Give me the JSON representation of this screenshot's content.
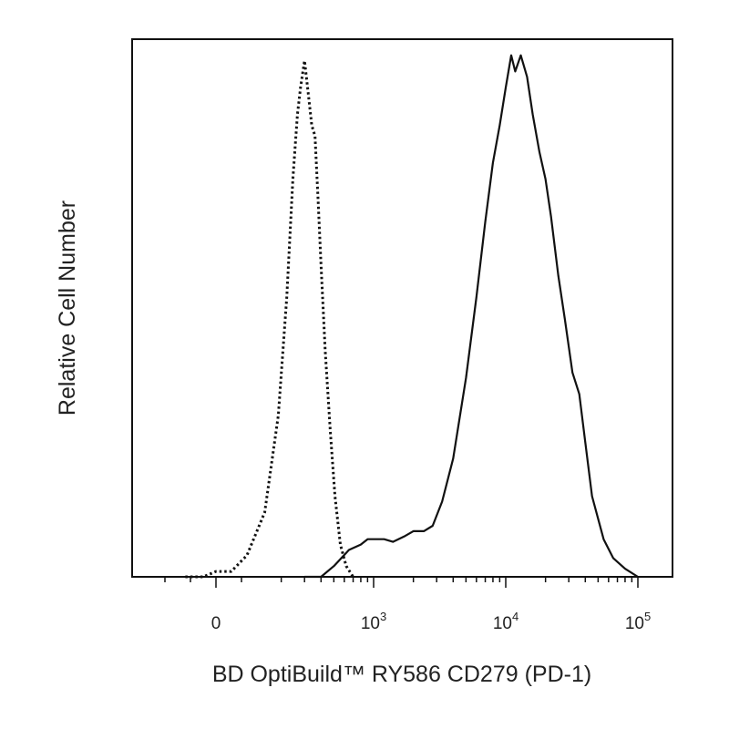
{
  "chart_data": {
    "type": "area",
    "xlabel": "BD OptiBuild™ RY586 CD279 (PD-1)",
    "ylabel": "Relative Cell Number",
    "x_scale": "biexponential (log above ~10^2.3)",
    "xlim": [
      -300,
      130000
    ],
    "ylim": [
      0,
      1.0
    ],
    "grid": false,
    "legend": "none",
    "x_tick_labels": [
      {
        "base": "0",
        "exp": "",
        "value": 0
      },
      {
        "base": "10",
        "exp": "3",
        "value": 1000
      },
      {
        "base": "10",
        "exp": "4",
        "value": 10000
      },
      {
        "base": "10",
        "exp": "5",
        "value": 100000
      }
    ],
    "series": [
      {
        "style": "dotted",
        "points": [
          [
            -120,
            0.0
          ],
          [
            -50,
            0.0
          ],
          [
            0,
            0.01
          ],
          [
            60,
            0.01
          ],
          [
            110,
            0.04
          ],
          [
            150,
            0.12
          ],
          [
            190,
            0.3
          ],
          [
            220,
            0.52
          ],
          [
            245,
            0.74
          ],
          [
            265,
            0.86
          ],
          [
            280,
            0.91
          ],
          [
            300,
            0.96
          ],
          [
            320,
            0.9
          ],
          [
            340,
            0.84
          ],
          [
            360,
            0.82
          ],
          [
            380,
            0.7
          ],
          [
            400,
            0.58
          ],
          [
            430,
            0.42
          ],
          [
            470,
            0.27
          ],
          [
            510,
            0.15
          ],
          [
            560,
            0.06
          ],
          [
            620,
            0.02
          ],
          [
            700,
            0.0
          ]
        ]
      },
      {
        "style": "solid",
        "points": [
          [
            300,
            0.0
          ],
          [
            400,
            0.0
          ],
          [
            500,
            0.02
          ],
          [
            650,
            0.05
          ],
          [
            800,
            0.06
          ],
          [
            900,
            0.07
          ],
          [
            1000,
            0.07
          ],
          [
            1200,
            0.07
          ],
          [
            1400,
            0.065
          ],
          [
            1700,
            0.075
          ],
          [
            2000,
            0.085
          ],
          [
            2400,
            0.085
          ],
          [
            2800,
            0.095
          ],
          [
            3300,
            0.14
          ],
          [
            4000,
            0.22
          ],
          [
            5000,
            0.37
          ],
          [
            6000,
            0.52
          ],
          [
            7000,
            0.66
          ],
          [
            8000,
            0.77
          ],
          [
            9000,
            0.84
          ],
          [
            10000,
            0.91
          ],
          [
            11000,
            0.97
          ],
          [
            11800,
            0.94
          ],
          [
            13000,
            0.97
          ],
          [
            14500,
            0.93
          ],
          [
            16000,
            0.86
          ],
          [
            18000,
            0.79
          ],
          [
            20000,
            0.74
          ],
          [
            22000,
            0.67
          ],
          [
            25000,
            0.56
          ],
          [
            28000,
            0.48
          ],
          [
            32000,
            0.38
          ],
          [
            36000,
            0.34
          ],
          [
            40000,
            0.25
          ],
          [
            45000,
            0.15
          ],
          [
            55000,
            0.07
          ],
          [
            65000,
            0.035
          ],
          [
            80000,
            0.015
          ],
          [
            100000,
            0.0
          ]
        ]
      }
    ]
  }
}
